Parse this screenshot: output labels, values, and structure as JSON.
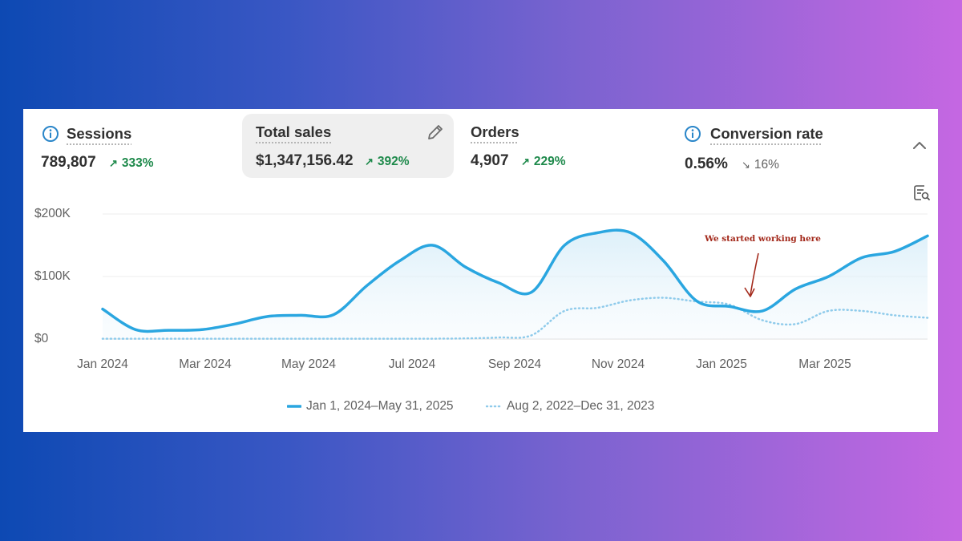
{
  "metrics": [
    {
      "label": "Sessions",
      "value": "789,807",
      "change": "333%",
      "direction": "up",
      "has_info": true
    },
    {
      "label": "Total sales",
      "value": "$1,347,156.42",
      "change": "392%",
      "direction": "up",
      "has_info": false
    },
    {
      "label": "Orders",
      "value": "4,907",
      "change": "229%",
      "direction": "up",
      "has_info": false
    },
    {
      "label": "Conversion rate",
      "value": "0.56%",
      "change": "16%",
      "direction": "down",
      "has_info": true
    }
  ],
  "icons": {
    "info": "info-icon",
    "edit": "pencil-icon",
    "collapse": "chevron-up-icon",
    "explore": "explore-data-icon"
  },
  "colors": {
    "primary_series": "#2aa6e0",
    "comparison_series": "#8fcbeb",
    "positive": "#1f8a4c",
    "annotation": "#a3291b"
  },
  "annotation": "We started working here",
  "chart_data": {
    "type": "line",
    "y_ticks": [
      "$200K",
      "$100K",
      "$0"
    ],
    "x_ticks": [
      "Jan 2024",
      "Mar 2024",
      "May 2024",
      "Jul 2024",
      "Sep 2024",
      "Nov 2024",
      "Jan 2025",
      "Mar 2025"
    ],
    "ylim": [
      0,
      200000
    ],
    "grid": true,
    "legend_position": "bottom",
    "series": [
      {
        "name": "Jan 1, 2024–May 31, 2025",
        "style": "solid",
        "values": [
          48000,
          15000,
          14000,
          15000,
          24000,
          36000,
          38000,
          39000,
          85000,
          125000,
          150000,
          115000,
          90000,
          75000,
          150000,
          170000,
          170000,
          125000,
          61000,
          52000,
          45000,
          80000,
          100000,
          130000,
          140000,
          165000
        ]
      },
      {
        "name": "Aug 2, 2022–Dec 31, 2023",
        "style": "dotted",
        "values": [
          500,
          500,
          500,
          500,
          500,
          500,
          500,
          500,
          500,
          500,
          500,
          1000,
          2500,
          6000,
          45000,
          50000,
          62000,
          66000,
          60000,
          55000,
          30000,
          24000,
          45000,
          45000,
          38000,
          34000
        ]
      }
    ]
  }
}
